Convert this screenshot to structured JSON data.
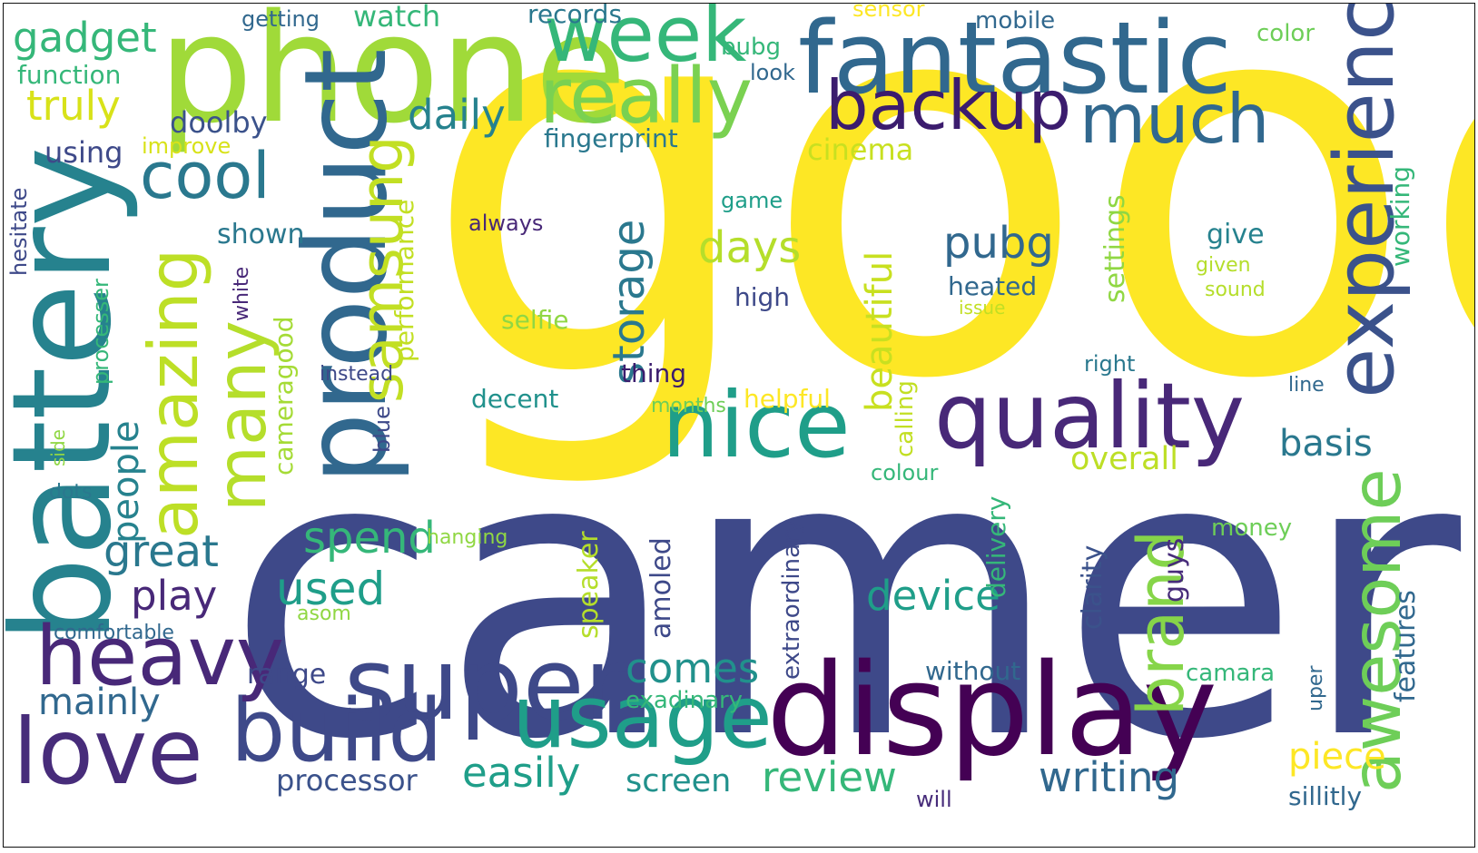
{
  "colors": {
    "background": "#ffffff",
    "yellow": "#fde725",
    "lime": "#b5de2b",
    "green": "#6ece58",
    "mint": "#35b779",
    "teal": "#1f9e89",
    "cyan": "#26828e",
    "blue": "#31688e",
    "indigo": "#3e4989",
    "purple": "#482878",
    "dark": "#440154"
  },
  "words": [
    {
      "text": "good",
      "weight": 1.0,
      "color": "#fde725"
    },
    {
      "text": "camera",
      "weight": 0.95,
      "color": "#3e4989"
    },
    {
      "text": "phone",
      "weight": 0.55,
      "color": "#a0da39"
    },
    {
      "text": "battery",
      "weight": 0.5,
      "color": "#26828e"
    },
    {
      "text": "fantastic",
      "weight": 0.48,
      "color": "#31688e"
    },
    {
      "text": "display",
      "weight": 0.48,
      "color": "#440154"
    },
    {
      "text": "product",
      "weight": 0.45,
      "color": "#31688e"
    },
    {
      "text": "experience",
      "weight": 0.4,
      "color": "#3b528b"
    },
    {
      "text": "quality",
      "weight": 0.4,
      "color": "#482878"
    },
    {
      "text": "super",
      "weight": 0.38,
      "color": "#3e4989"
    },
    {
      "text": "nice",
      "weight": 0.37,
      "color": "#1f9e89"
    },
    {
      "text": "awesome",
      "weight": 0.36,
      "color": "#6ece58"
    },
    {
      "text": "really",
      "weight": 0.35,
      "color": "#7ad151"
    },
    {
      "text": "week",
      "weight": 0.33,
      "color": "#35b779"
    },
    {
      "text": "love",
      "weight": 0.33,
      "color": "#472c7a"
    },
    {
      "text": "usage",
      "weight": 0.33,
      "color": "#1f9e89"
    },
    {
      "text": "amazing",
      "weight": 0.32,
      "color": "#bddf26"
    },
    {
      "text": "build",
      "weight": 0.31,
      "color": "#3e4989"
    },
    {
      "text": "many",
      "weight": 0.3,
      "color": "#b5de2b"
    },
    {
      "text": "much",
      "weight": 0.3,
      "color": "#31688e"
    },
    {
      "text": "heavy",
      "weight": 0.3,
      "color": "#482878"
    },
    {
      "text": "cool",
      "weight": 0.29,
      "color": "#2a788e"
    },
    {
      "text": "backup",
      "weight": 0.28,
      "color": "#3b1c6e"
    },
    {
      "text": "brand",
      "weight": 0.27,
      "color": "#86d549"
    },
    {
      "text": "samsung",
      "weight": 0.27,
      "color": "#c2df23"
    },
    {
      "text": "gadget",
      "weight": 0.23,
      "color": "#35b779"
    },
    {
      "text": "days",
      "weight": 0.23,
      "color": "#b5de2b"
    },
    {
      "text": "device",
      "weight": 0.23,
      "color": "#1f9e89"
    },
    {
      "text": "pubg",
      "weight": 0.23,
      "color": "#31688e"
    },
    {
      "text": "great",
      "weight": 0.22,
      "color": "#2a788e"
    },
    {
      "text": "storage",
      "weight": 0.22,
      "color": "#2a788e"
    },
    {
      "text": "beautiful",
      "weight": 0.21,
      "color": "#c8e020"
    },
    {
      "text": "people",
      "weight": 0.2,
      "color": "#26828e"
    },
    {
      "text": "writing",
      "weight": 0.2,
      "color": "#31688e"
    },
    {
      "text": "easily",
      "weight": 0.2,
      "color": "#1f9e89"
    },
    {
      "text": "used",
      "weight": 0.2,
      "color": "#1f9e89"
    },
    {
      "text": "spend",
      "weight": 0.2,
      "color": "#35b779"
    },
    {
      "text": "play",
      "weight": 0.2,
      "color": "#482878"
    },
    {
      "text": "comes",
      "weight": 0.19,
      "color": "#21918c"
    },
    {
      "text": "review",
      "weight": 0.19,
      "color": "#35b779"
    },
    {
      "text": "truly",
      "weight": 0.19,
      "color": "#d8e219"
    },
    {
      "text": "daily",
      "weight": 0.19,
      "color": "#26828e"
    },
    {
      "text": "mainly",
      "weight": 0.19,
      "color": "#31688e"
    },
    {
      "text": "basis",
      "weight": 0.19,
      "color": "#2a788e"
    },
    {
      "text": "piece",
      "weight": 0.19,
      "color": "#fde725"
    },
    {
      "text": "screen",
      "weight": 0.17,
      "color": "#21918c"
    },
    {
      "text": "processor",
      "weight": 0.16,
      "color": "#3b528b"
    },
    {
      "text": "range",
      "weight": 0.16,
      "color": "#3e4989"
    },
    {
      "text": "overall",
      "weight": 0.16,
      "color": "#bddf26"
    },
    {
      "text": "settings",
      "weight": 0.16,
      "color": "#90d743"
    },
    {
      "text": "cameragood",
      "weight": 0.16,
      "color": "#a5db36"
    },
    {
      "text": "performance",
      "weight": 0.15,
      "color": "#c2df23"
    },
    {
      "text": "speaker",
      "weight": 0.15,
      "color": "#b5de2b"
    },
    {
      "text": "amoled",
      "weight": 0.15,
      "color": "#3e4989"
    },
    {
      "text": "clarity",
      "weight": 0.15,
      "color": "#3b528b"
    },
    {
      "text": "guys",
      "weight": 0.15,
      "color": "#472c7a"
    },
    {
      "text": "features",
      "weight": 0.15,
      "color": "#31688e"
    },
    {
      "text": "cinema",
      "weight": 0.15,
      "color": "#c8e020"
    },
    {
      "text": "selfie",
      "weight": 0.14,
      "color": "#90d743"
    },
    {
      "text": "decent",
      "weight": 0.14,
      "color": "#21918c"
    },
    {
      "text": "delivery",
      "weight": 0.14,
      "color": "#35b779"
    },
    {
      "text": "extraordinary",
      "weight": 0.14,
      "color": "#3e4989"
    },
    {
      "text": "without",
      "weight": 0.14,
      "color": "#31688e"
    },
    {
      "text": "watch",
      "weight": 0.14,
      "color": "#35b779"
    },
    {
      "text": "doolby",
      "weight": 0.14,
      "color": "#3b528b"
    },
    {
      "text": "using",
      "weight": 0.14,
      "color": "#3e4989"
    },
    {
      "text": "shown",
      "weight": 0.14,
      "color": "#2a788e"
    },
    {
      "text": "give",
      "weight": 0.14,
      "color": "#26828e"
    },
    {
      "text": "working",
      "weight": 0.14,
      "color": "#35b779"
    },
    {
      "text": "heated",
      "weight": 0.14,
      "color": "#31688e"
    },
    {
      "text": "fingerprint",
      "weight": 0.13,
      "color": "#2a788e"
    },
    {
      "text": "function",
      "weight": 0.13,
      "color": "#35b779"
    },
    {
      "text": "thing",
      "weight": 0.13,
      "color": "#3b1c6e"
    },
    {
      "text": "calling",
      "weight": 0.13,
      "color": "#c2df23"
    },
    {
      "text": "high",
      "weight": 0.13,
      "color": "#3e4989"
    },
    {
      "text": "exadinary",
      "weight": 0.12,
      "color": "#35b779"
    },
    {
      "text": "camara",
      "weight": 0.12,
      "color": "#35b779"
    },
    {
      "text": "money",
      "weight": 0.12,
      "color": "#6ece58"
    },
    {
      "text": "sillitly",
      "weight": 0.12,
      "color": "#31688e"
    },
    {
      "text": "helpful",
      "weight": 0.12,
      "color": "#fde725"
    },
    {
      "text": "colour",
      "weight": 0.12,
      "color": "#35b779"
    },
    {
      "text": "records",
      "weight": 0.12,
      "color": "#2a788e"
    },
    {
      "text": "mobile",
      "weight": 0.12,
      "color": "#31688e"
    },
    {
      "text": "getting",
      "weight": 0.11,
      "color": "#31688e"
    },
    {
      "text": "sensor",
      "weight": 0.11,
      "color": "#fde725"
    },
    {
      "text": "color",
      "weight": 0.11,
      "color": "#6ece58"
    },
    {
      "text": "bubg",
      "weight": 0.11,
      "color": "#35b779"
    },
    {
      "text": "look",
      "weight": 0.11,
      "color": "#31688e"
    },
    {
      "text": "improve",
      "weight": 0.11,
      "color": "#d8e219"
    },
    {
      "text": "game",
      "weight": 0.11,
      "color": "#1f9e89"
    },
    {
      "text": "always",
      "weight": 0.11,
      "color": "#482878"
    },
    {
      "text": "hesitate",
      "weight": 0.11,
      "color": "#3e4989"
    },
    {
      "text": "processer",
      "weight": 0.11,
      "color": "#35b779"
    },
    {
      "text": "white",
      "weight": 0.11,
      "color": "#482878"
    },
    {
      "text": "instead",
      "weight": 0.11,
      "color": "#3e4989"
    },
    {
      "text": "blue",
      "weight": 0.11,
      "color": "#3e4989"
    },
    {
      "text": "months",
      "weight": 0.11,
      "color": "#6ece58"
    },
    {
      "text": "comfortable",
      "weight": 0.11,
      "color": "#31688e"
    },
    {
      "text": "asom",
      "weight": 0.11,
      "color": "#90d743"
    },
    {
      "text": "hanging",
      "weight": 0.11,
      "color": "#90d743"
    },
    {
      "text": "dots",
      "weight": 0.11,
      "color": "#2a788e"
    },
    {
      "text": "side",
      "weight": 0.1,
      "color": "#90d743"
    },
    {
      "text": "right",
      "weight": 0.1,
      "color": "#2a788e"
    },
    {
      "text": "line",
      "weight": 0.1,
      "color": "#31688e"
    },
    {
      "text": "uper",
      "weight": 0.1,
      "color": "#31688e"
    },
    {
      "text": "will",
      "weight": 0.1,
      "color": "#472c7a"
    },
    {
      "text": "given",
      "weight": 0.1,
      "color": "#b5de2b"
    },
    {
      "text": "sound",
      "weight": 0.1,
      "color": "#b5de2b"
    },
    {
      "text": "issue",
      "weight": 0.1,
      "color": "#c2df23"
    }
  ]
}
